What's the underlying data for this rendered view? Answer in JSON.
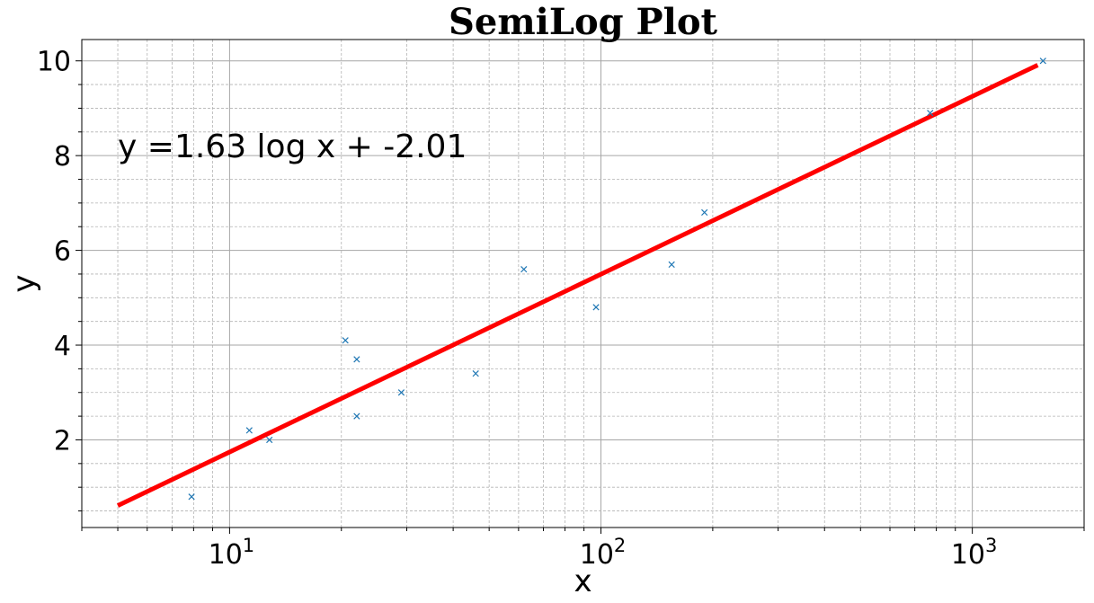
{
  "chart_data": {
    "type": "scatter",
    "title": "SemiLog Plot",
    "xlabel": "x",
    "ylabel": "y",
    "xscale": "log",
    "xlim": [
      4,
      2000
    ],
    "ylim": [
      0.15,
      10.45
    ],
    "grid": "major and minor, dashed",
    "x_ticks": [
      {
        "value": 10,
        "base": "10",
        "exp": "1"
      },
      {
        "value": 100,
        "base": "10",
        "exp": "2"
      },
      {
        "value": 1000,
        "base": "10",
        "exp": "3"
      }
    ],
    "y_ticks": [
      2,
      4,
      6,
      8,
      10
    ],
    "series": [
      {
        "kind": "points",
        "marker": "x",
        "color": "#1f77b4",
        "x": [
          7.9,
          11.3,
          12.8,
          20.5,
          22,
          22,
          29,
          46,
          62,
          97,
          155,
          190,
          770,
          1550
        ],
        "y": [
          0.8,
          2.2,
          2.0,
          4.1,
          3.7,
          2.5,
          3.0,
          3.4,
          5.6,
          4.8,
          5.7,
          6.8,
          8.9,
          10.0
        ]
      },
      {
        "kind": "fit-line",
        "color": "#ff0000",
        "slope": 1.63,
        "intercept": -2.01,
        "x_range": [
          5,
          1500
        ]
      }
    ],
    "annotation": {
      "text": "y =1.63 log x + -2.01",
      "x": 5,
      "y": 8
    }
  }
}
